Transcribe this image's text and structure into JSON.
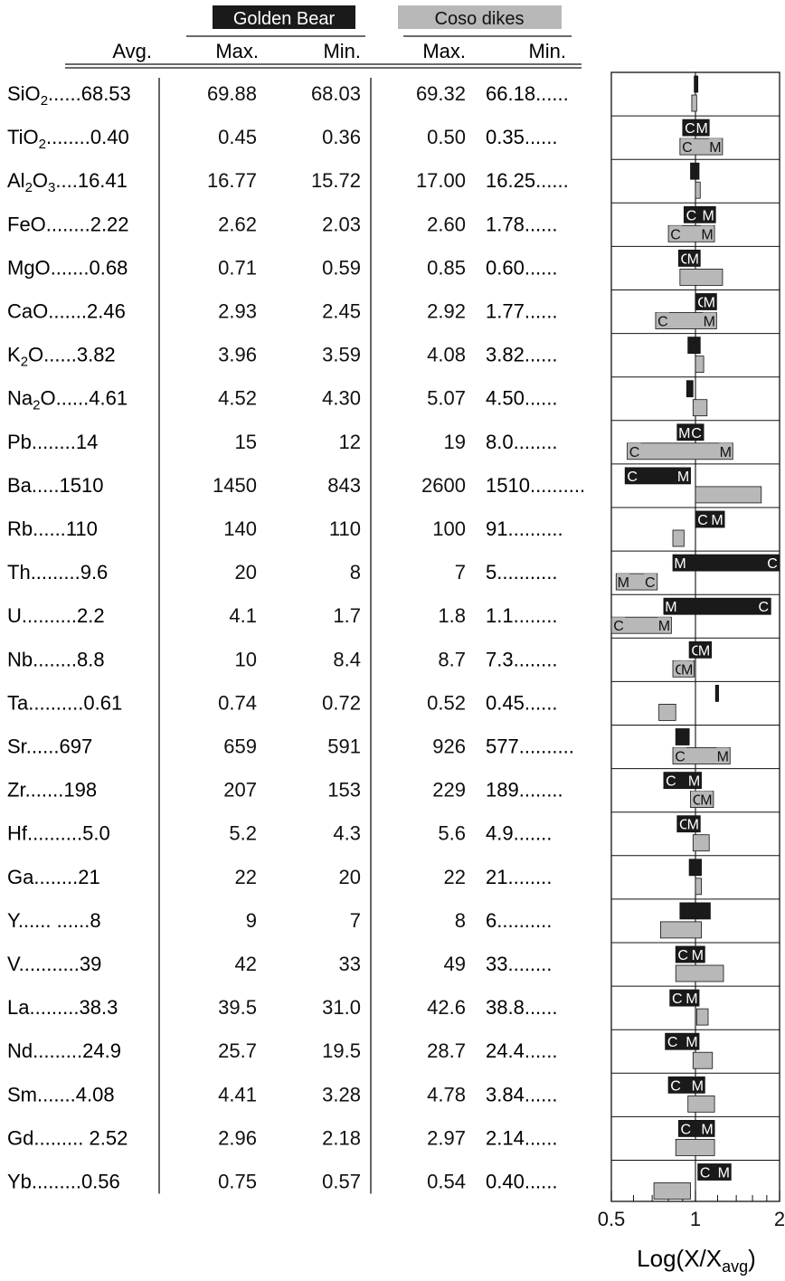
{
  "header": {
    "golden_bear": "Golden Bear",
    "coso_dikes": "Coso dikes",
    "avg": "Avg.",
    "max": "Max.",
    "min": "Min."
  },
  "colors": {
    "golden_bear": "#1a1a1a",
    "coso": "#b8b8b8",
    "line": "#111111"
  },
  "chart_data": {
    "type": "table",
    "columns": [
      "Avg.",
      "Golden Bear Max.",
      "Golden Bear Min.",
      "Coso dikes Max.",
      "Coso dikes Min."
    ],
    "rows": [
      {
        "label": "SiO2",
        "sub": "2",
        "head": "SiO",
        "lead": "......",
        "avg": "68.53",
        "gb_max": "69.88",
        "gb_min": "68.03",
        "coso_max": "69.32",
        "coso_min": "66.18",
        "tail": "......"
      },
      {
        "label": "TiO2",
        "sub": "2",
        "head": "TiO",
        "lead": "........",
        "avg": "0.40",
        "gb_max": "0.45",
        "gb_min": "0.36",
        "coso_max": "0.50",
        "coso_min": "0.35",
        "tail": "......"
      },
      {
        "label": "Al2O3",
        "sub": "2",
        "head": "Al",
        "tail2": "O",
        "sub2": "3",
        "lead": "....",
        "avg": "16.41",
        "gb_max": "16.77",
        "gb_min": "15.72",
        "coso_max": "17.00",
        "coso_min": "16.25",
        "tail": "......"
      },
      {
        "label": "FeO",
        "head": "FeO",
        "lead": "........",
        "avg": "2.22",
        "gb_max": "2.62",
        "gb_min": "2.03",
        "coso_max": "2.60",
        "coso_min": "1.78",
        "tail": "......"
      },
      {
        "label": "MgO",
        "head": "MgO",
        "lead": ".......",
        "avg": "0.68",
        "gb_max": "0.71",
        "gb_min": "0.59",
        "coso_max": "0.85",
        "coso_min": "0.60",
        "tail": "......"
      },
      {
        "label": "CaO",
        "head": "CaO",
        "lead": ".......",
        "avg": "2.46",
        "gb_max": "2.93",
        "gb_min": "2.45",
        "coso_max": "2.92",
        "coso_min": "1.77",
        "tail": "......"
      },
      {
        "label": "K2O",
        "sub": "2",
        "head": "K",
        "tail2": "O",
        "lead": "......",
        "avg": "3.82",
        "gb_max": "3.96",
        "gb_min": "3.59",
        "coso_max": "4.08",
        "coso_min": "3.82",
        "tail": "......"
      },
      {
        "label": "Na2O",
        "sub": "2",
        "head": "Na",
        "tail2": "O",
        "lead": "......",
        "avg": "4.61",
        "gb_max": "4.52",
        "gb_min": "4.30",
        "coso_max": "5.07",
        "coso_min": "4.50",
        "tail": "......"
      },
      {
        "label": "Pb",
        "head": "Pb",
        "lead": "........",
        "avg": "14",
        "gb_max": "15",
        "gb_min": "12",
        "coso_max": "19",
        "coso_min": "8.0",
        "tail": "........"
      },
      {
        "label": "Ba",
        "head": "Ba",
        "lead": ".....",
        "avg": "1510",
        "gb_max": "1450",
        "gb_min": "843",
        "coso_max": "2600",
        "coso_min": "1510",
        "tail": ".........."
      },
      {
        "label": "Rb",
        "head": "Rb",
        "lead": "......",
        "avg": "110",
        "gb_max": "140",
        "gb_min": "110",
        "coso_max": "100",
        "coso_min": "91",
        "tail": ".........."
      },
      {
        "label": "Th",
        "head": "Th",
        "lead": ".........",
        "avg": "9.6",
        "gb_max": "20",
        "gb_min": "8",
        "coso_max": "7",
        "coso_min": "5",
        "tail": "..........."
      },
      {
        "label": "U",
        "head": "U",
        "lead": "..........",
        "avg": "2.2",
        "gb_max": "4.1",
        "gb_min": "1.7",
        "coso_max": "1.8",
        "coso_min": "1.1",
        "tail": "........"
      },
      {
        "label": "Nb",
        "head": "Nb",
        "lead": "........",
        "avg": "8.8",
        "gb_max": "10",
        "gb_min": "8.4",
        "coso_max": "8.7",
        "coso_min": "7.3",
        "tail": "........"
      },
      {
        "label": "Ta",
        "head": "Ta",
        "lead": "..........",
        "avg": "0.61",
        "gb_max": "0.74",
        "gb_min": "0.72",
        "coso_max": "0.52",
        "coso_min": "0.45",
        "tail": "......"
      },
      {
        "label": "Sr",
        "head": "Sr",
        "lead": "......",
        "avg": "697",
        "gb_max": "659",
        "gb_min": "591",
        "coso_max": "926",
        "coso_min": "577",
        "tail": ".........."
      },
      {
        "label": "Zr",
        "head": "Zr",
        "lead": ".......",
        "avg": "198",
        "gb_max": "207",
        "gb_min": "153",
        "coso_max": "229",
        "coso_min": "189",
        "tail": "........"
      },
      {
        "label": "Hf",
        "head": "Hf",
        "lead": "..........",
        "avg": "5.0",
        "gb_max": "5.2",
        "gb_min": "4.3",
        "coso_max": "5.6",
        "coso_min": "4.9",
        "tail": "......."
      },
      {
        "label": "Ga",
        "head": "Ga",
        "lead": "........",
        "avg": "21",
        "gb_max": "22",
        "gb_min": "20",
        "coso_max": "22",
        "coso_min": "21",
        "tail": "........"
      },
      {
        "label": "Y",
        "head": "Y",
        "lead": "...... ......",
        "avg": "8",
        "gb_max": "9",
        "gb_min": "7",
        "coso_max": "8",
        "coso_min": "6",
        "tail": ".........."
      },
      {
        "label": "V",
        "head": "V",
        "lead": "...........",
        "avg": "39",
        "gb_max": "42",
        "gb_min": "33",
        "coso_max": "49",
        "coso_min": "33",
        "tail": "........"
      },
      {
        "label": "La",
        "head": "La",
        "lead": ".........",
        "avg": "38.3",
        "gb_max": "39.5",
        "gb_min": "31.0",
        "coso_max": "42.6",
        "coso_min": "38.8",
        "tail": "......"
      },
      {
        "label": "Nd",
        "head": "Nd",
        "lead": ".........",
        "avg": "24.9",
        "gb_max": "25.7",
        "gb_min": "19.5",
        "coso_max": "28.7",
        "coso_min": "24.4",
        "tail": "......"
      },
      {
        "label": "Sm",
        "head": "Sm",
        "lead": ".......",
        "avg": "4.08",
        "gb_max": "4.41",
        "gb_min": "3.28",
        "coso_max": "4.78",
        "coso_min": "3.84",
        "tail": "......"
      },
      {
        "label": "Gd",
        "head": "Gd",
        "lead": "......... ",
        "avg": "2.52",
        "gb_max": "2.96",
        "gb_min": "2.18",
        "coso_max": "2.97",
        "coso_min": "2.14",
        "tail": "......"
      },
      {
        "label": "Yb",
        "head": "Yb",
        "lead": ".........",
        "avg": "0.56",
        "gb_max": "0.75",
        "gb_min": "0.57",
        "coso_max": "0.54",
        "coso_min": "0.40",
        "tail": "......"
      }
    ],
    "bar_chart": {
      "type": "bar",
      "orientation": "horizontal",
      "scale": "log",
      "xlim": [
        0.5,
        2
      ],
      "x_ticks": [
        "0.5",
        "1",
        "2"
      ],
      "xlabel_main": "Log(X/X",
      "xlabel_sub": "avg",
      "xlabel_end": ")",
      "series": [
        {
          "name": "Golden Bear",
          "ranges": [
            [
              0.99,
              1.02
            ],
            [
              0.9,
              1.12
            ],
            [
              0.96,
              1.03
            ],
            [
              0.91,
              1.18
            ],
            [
              0.87,
              1.04
            ],
            [
              1.0,
              1.19
            ],
            [
              0.94,
              1.04
            ],
            [
              0.93,
              0.98
            ],
            [
              0.86,
              1.07
            ],
            [
              0.56,
              0.96
            ],
            [
              1.0,
              1.27
            ],
            [
              0.83,
              2.08
            ],
            [
              0.77,
              1.86
            ],
            [
              0.95,
              1.14
            ],
            [
              1.18,
              1.21
            ],
            [
              0.85,
              0.95
            ],
            [
              0.77,
              1.05
            ],
            [
              0.86,
              1.04
            ],
            [
              0.95,
              1.05
            ],
            [
              0.88,
              1.13
            ],
            [
              0.85,
              1.08
            ],
            [
              0.81,
              1.03
            ],
            [
              0.78,
              1.03
            ],
            [
              0.8,
              1.08
            ],
            [
              0.87,
              1.17
            ],
            [
              1.02,
              1.34
            ]
          ],
          "letters": [
            [
              "",
              ""
            ],
            [
              "C",
              "M"
            ],
            [
              "",
              ""
            ],
            [
              "C",
              "M"
            ],
            [
              "C",
              "M"
            ],
            [
              "C",
              "M"
            ],
            [
              "",
              ""
            ],
            [
              "",
              ""
            ],
            [
              "M",
              "C"
            ],
            [
              "C",
              "M"
            ],
            [
              "C",
              "M"
            ],
            [
              "M",
              "C"
            ],
            [
              "M",
              "C"
            ],
            [
              "C",
              "M"
            ],
            [
              "",
              ""
            ],
            [
              "",
              ""
            ],
            [
              "C",
              "M"
            ],
            [
              "C",
              "M"
            ],
            [
              "",
              ""
            ],
            [
              "",
              ""
            ],
            [
              "C",
              "M"
            ],
            [
              "C",
              "M"
            ],
            [
              "C",
              "M"
            ],
            [
              "C",
              "M"
            ],
            [
              "C",
              "M"
            ],
            [
              "C",
              "M"
            ]
          ]
        },
        {
          "name": "Coso dikes",
          "ranges": [
            [
              0.97,
              1.01
            ],
            [
              0.88,
              1.25
            ],
            [
              1.0,
              1.04
            ],
            [
              0.8,
              1.17
            ],
            [
              0.88,
              1.25
            ],
            [
              0.72,
              1.19
            ],
            [
              1.0,
              1.07
            ],
            [
              0.98,
              1.1
            ],
            [
              0.57,
              1.36
            ],
            [
              1.0,
              1.72
            ],
            [
              0.83,
              0.91
            ],
            [
              0.52,
              0.73
            ],
            [
              0.5,
              0.82
            ],
            [
              0.83,
              0.99
            ],
            [
              0.74,
              0.85
            ],
            [
              0.83,
              1.33
            ],
            [
              0.96,
              1.16
            ],
            [
              0.98,
              1.12
            ],
            [
              1.0,
              1.05
            ],
            [
              0.75,
              1.05
            ],
            [
              0.85,
              1.26
            ],
            [
              1.01,
              1.11
            ],
            [
              0.98,
              1.15
            ],
            [
              0.94,
              1.17
            ],
            [
              0.85,
              1.17
            ],
            [
              0.71,
              0.96
            ]
          ],
          "letters": [
            [
              "",
              ""
            ],
            [
              "C",
              "M"
            ],
            [
              "",
              ""
            ],
            [
              "C",
              "M"
            ],
            [
              "",
              ""
            ],
            [
              "C",
              "M"
            ],
            [
              "",
              ""
            ],
            [
              "",
              ""
            ],
            [
              "C",
              "M"
            ],
            [
              "",
              ""
            ],
            [
              "",
              ""
            ],
            [
              "M",
              "C"
            ],
            [
              "C",
              "M"
            ],
            [
              "C",
              "M"
            ],
            [
              "",
              ""
            ],
            [
              "C",
              "M"
            ],
            [
              "C",
              "M"
            ],
            [
              "",
              ""
            ],
            [
              "",
              ""
            ],
            [
              "",
              ""
            ],
            [
              "",
              ""
            ],
            [
              "",
              ""
            ],
            [
              "",
              ""
            ],
            [
              "",
              ""
            ],
            [
              "",
              ""
            ],
            [
              "",
              ""
            ]
          ]
        }
      ]
    }
  }
}
